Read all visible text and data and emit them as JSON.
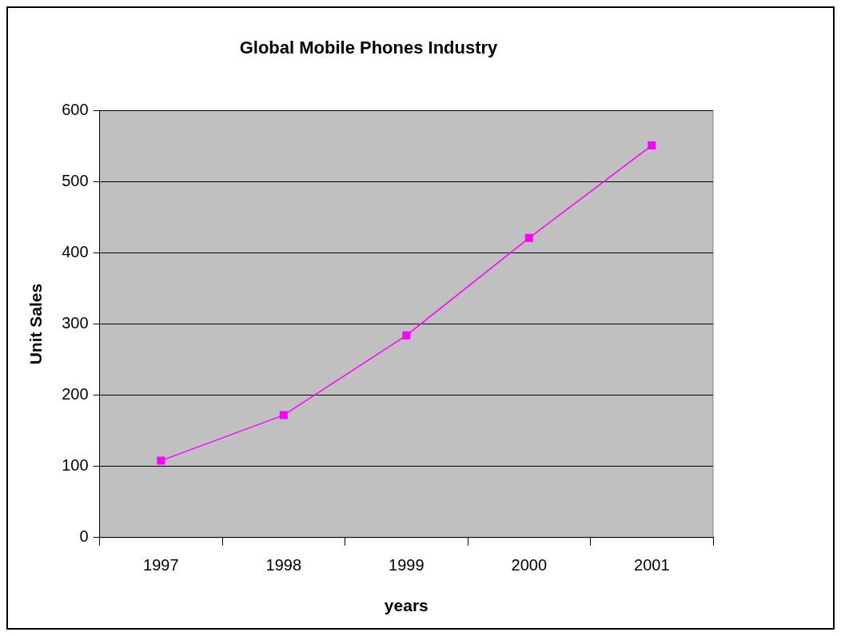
{
  "chart_data": {
    "type": "line",
    "title": "Global Mobile Phones Industry",
    "xlabel": "years",
    "ylabel": "Unit Sales",
    "categories": [
      "1997",
      "1998",
      "1999",
      "2000",
      "2001"
    ],
    "series": [
      {
        "color": "#ff00ff",
        "values": [
          108,
          172,
          284,
          421,
          551
        ]
      }
    ],
    "ylim": [
      0,
      600
    ],
    "yticks": [
      0,
      100,
      200,
      300,
      400,
      500,
      600
    ],
    "grid": "y",
    "legend": false,
    "marker": "square",
    "line_style": "solid"
  }
}
